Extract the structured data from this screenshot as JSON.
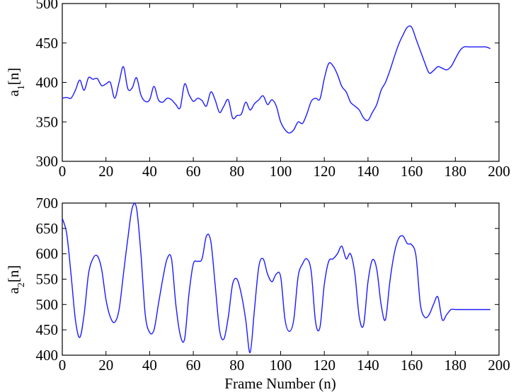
{
  "chart_data": [
    {
      "type": "line",
      "ylabel_main": "a",
      "ylabel_sub": "1",
      "ylabel_tail": "[n]",
      "xlabel": "",
      "xlim": [
        0,
        200
      ],
      "ylim": [
        300,
        500
      ],
      "xticks": [
        0,
        20,
        40,
        60,
        80,
        100,
        120,
        140,
        160,
        180,
        200
      ],
      "yticks": [
        300,
        350,
        400,
        450,
        500
      ],
      "grid": false,
      "color": "#1a1aff",
      "x": [
        0,
        2,
        4,
        6,
        8,
        10,
        12,
        14,
        16,
        18,
        20,
        22,
        24,
        26,
        28,
        30,
        32,
        34,
        36,
        38,
        40,
        42,
        44,
        46,
        48,
        50,
        52,
        54,
        56,
        58,
        60,
        62,
        64,
        66,
        68,
        70,
        72,
        74,
        76,
        78,
        80,
        82,
        84,
        86,
        88,
        90,
        92,
        94,
        96,
        98,
        100,
        102,
        104,
        106,
        108,
        110,
        112,
        114,
        116,
        118,
        120,
        122,
        124,
        126,
        128,
        130,
        132,
        134,
        136,
        138,
        140,
        142,
        144,
        146,
        148,
        150,
        152,
        154,
        156,
        158,
        160,
        162,
        164,
        166,
        168,
        170,
        172,
        174,
        176,
        178,
        180,
        182,
        184,
        186,
        188,
        190,
        192,
        194,
        196
      ],
      "y": [
        380,
        381,
        380,
        390,
        403,
        390,
        406,
        404,
        405,
        396,
        398,
        400,
        380,
        400,
        420,
        392,
        393,
        406,
        384,
        376,
        378,
        395,
        378,
        375,
        380,
        378,
        372,
        368,
        398,
        385,
        376,
        380,
        377,
        370,
        388,
        378,
        362,
        370,
        378,
        355,
        358,
        360,
        375,
        365,
        373,
        378,
        383,
        372,
        378,
        370,
        350,
        340,
        336,
        340,
        350,
        348,
        360,
        376,
        380,
        379,
        405,
        424,
        421,
        410,
        395,
        388,
        375,
        370,
        365,
        355,
        352,
        362,
        372,
        390,
        400,
        415,
        432,
        448,
        460,
        470,
        470,
        455,
        440,
        425,
        412,
        415,
        420,
        418,
        416,
        420,
        430,
        440,
        445,
        445,
        445,
        445,
        445,
        445,
        443
      ]
    },
    {
      "type": "line",
      "ylabel_main": "a",
      "ylabel_sub": "2",
      "ylabel_tail": "[n]",
      "xlabel": "Frame Number (n)",
      "xlim": [
        0,
        200
      ],
      "ylim": [
        400,
        700
      ],
      "xticks": [
        0,
        20,
        40,
        60,
        80,
        100,
        120,
        140,
        160,
        180,
        200
      ],
      "yticks": [
        400,
        450,
        500,
        550,
        600,
        650,
        700
      ],
      "grid": false,
      "color": "#1a1aff",
      "x": [
        0,
        2,
        4,
        6,
        8,
        10,
        12,
        14,
        16,
        18,
        20,
        22,
        24,
        26,
        28,
        30,
        32,
        34,
        36,
        38,
        40,
        42,
        44,
        46,
        48,
        50,
        52,
        54,
        56,
        58,
        60,
        62,
        64,
        66,
        68,
        70,
        72,
        74,
        76,
        78,
        80,
        82,
        84,
        86,
        88,
        90,
        92,
        94,
        96,
        98,
        100,
        102,
        104,
        106,
        108,
        110,
        112,
        114,
        116,
        118,
        120,
        122,
        124,
        126,
        128,
        130,
        132,
        134,
        136,
        138,
        140,
        142,
        144,
        146,
        148,
        150,
        152,
        154,
        156,
        158,
        160,
        162,
        164,
        166,
        168,
        170,
        172,
        174,
        176,
        178,
        180,
        182,
        184,
        186,
        188,
        190,
        192,
        194,
        196
      ],
      "y": [
        670,
        640,
        560,
        470,
        435,
        480,
        560,
        590,
        596,
        570,
        510,
        475,
        465,
        490,
        560,
        630,
        690,
        690,
        600,
        480,
        445,
        450,
        500,
        550,
        590,
        590,
        500,
        440,
        432,
        520,
        580,
        585,
        590,
        635,
        625,
        540,
        450,
        432,
        475,
        540,
        550,
        520,
        470,
        405,
        490,
        575,
        590,
        560,
        545,
        560,
        555,
        470,
        447,
        470,
        555,
        580,
        590,
        565,
        465,
        455,
        540,
        585,
        590,
        600,
        615,
        590,
        600,
        560,
        475,
        460,
        545,
        588,
        570,
        500,
        470,
        545,
        600,
        630,
        635,
        620,
        618,
        595,
        500,
        475,
        480,
        500,
        515,
        470,
        480,
        490,
        490,
        490,
        490,
        490,
        490,
        490,
        490,
        490,
        490
      ]
    }
  ]
}
